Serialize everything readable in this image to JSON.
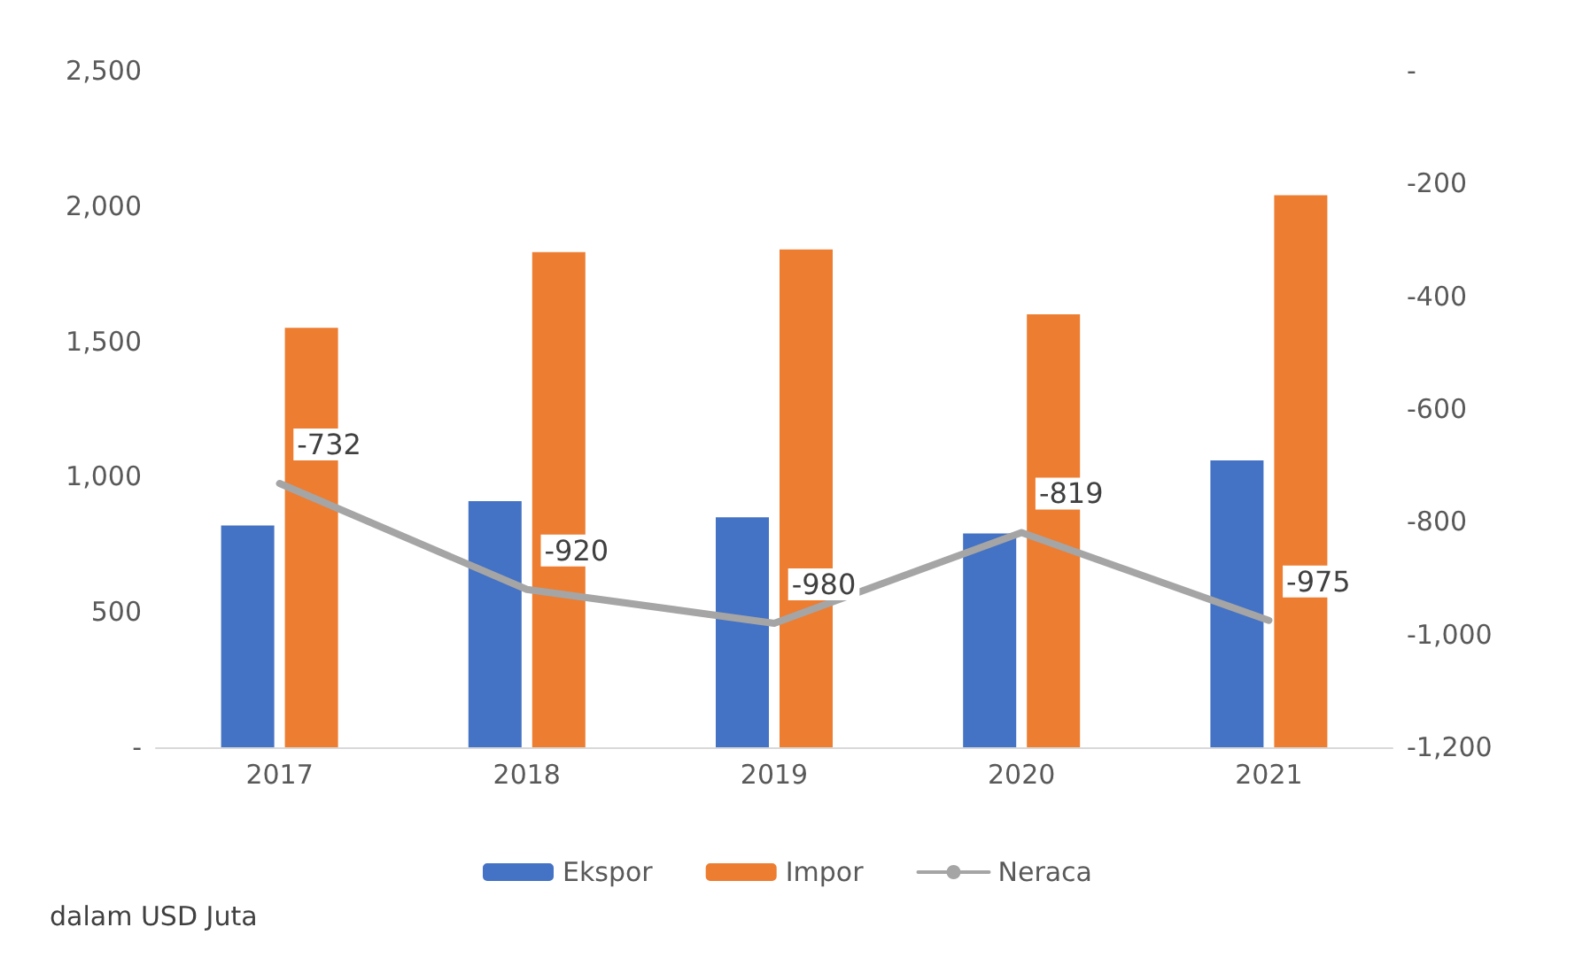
{
  "chart_data": {
    "type": "bar",
    "categories": [
      "2017",
      "2018",
      "2019",
      "2020",
      "2021"
    ],
    "series": [
      {
        "name": "Ekspor",
        "color": "#4472c4",
        "values": [
          820,
          910,
          850,
          790,
          1060
        ]
      },
      {
        "name": "Impor",
        "color": "#ed7d31",
        "values": [
          1550,
          1830,
          1840,
          1600,
          2040
        ]
      },
      {
        "name": "Neraca",
        "type": "line",
        "axis": "y2",
        "color": "#a5a5a5",
        "values": [
          -732,
          -920,
          -980,
          -819,
          -975
        ],
        "data_labels": true
      }
    ],
    "ylim": [
      0,
      2500
    ],
    "yticks": [
      {
        "value": 0,
        "label": "-"
      },
      500,
      {
        "value": 1000,
        "label": "1,000"
      },
      {
        "value": 1500,
        "label": "1,500"
      },
      {
        "value": 2000,
        "label": "2,000"
      },
      {
        "value": 2500,
        "label": "2,500"
      }
    ],
    "y2lim": [
      -1200,
      0
    ],
    "y2ticks": [
      {
        "value": -1200,
        "label": "-1,200"
      },
      {
        "value": -1000,
        "label": "-1,000"
      },
      -800,
      -600,
      -400,
      -200,
      {
        "value": 0,
        "label": "-"
      }
    ],
    "grid": false,
    "legend": "bottom",
    "marker": "none",
    "annotations": [
      "dalam USD Juta"
    ]
  }
}
